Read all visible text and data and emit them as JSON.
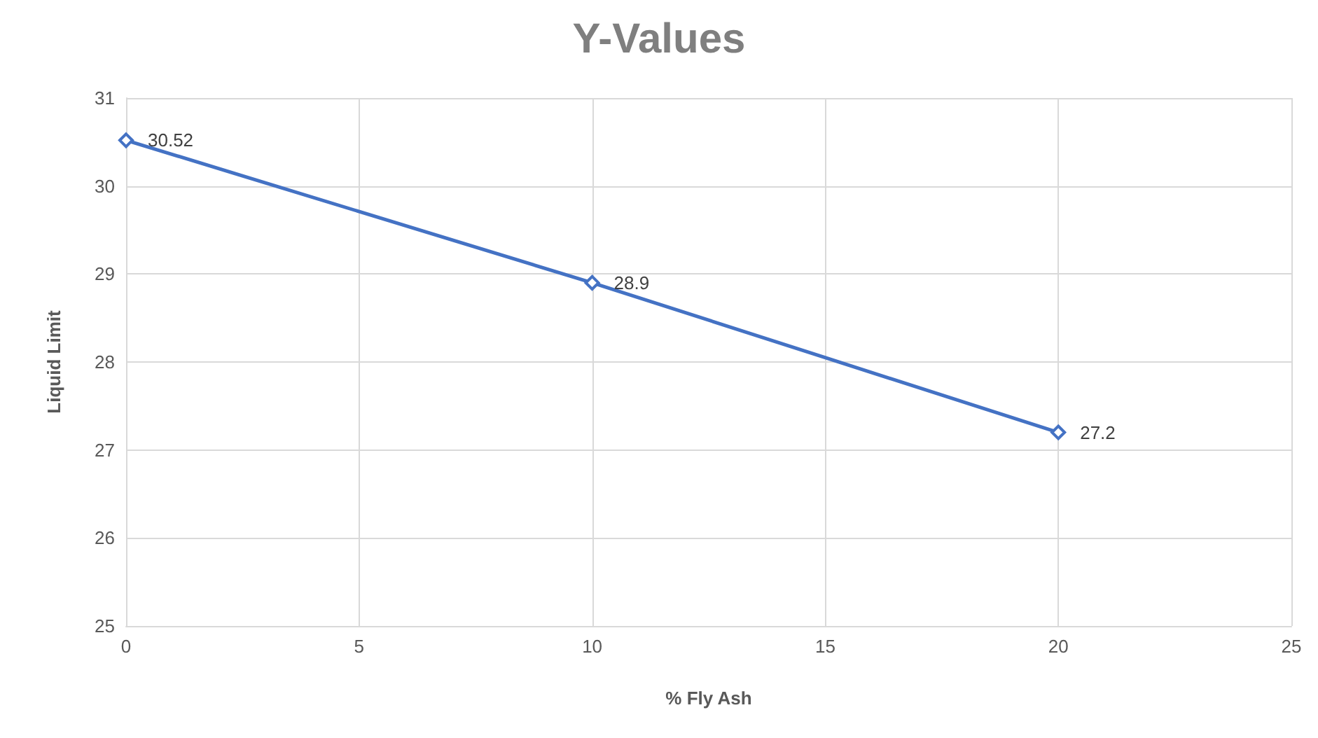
{
  "chart_data": {
    "type": "line",
    "title": "Y-Values",
    "xlabel": "% Fly Ash",
    "ylabel": "Liquid Limit",
    "x": [
      0,
      10,
      20
    ],
    "series": [
      {
        "color": "#4472c4",
        "values": [
          30.52,
          28.9,
          27.2
        ]
      }
    ],
    "xlim": [
      0,
      25
    ],
    "xticks": [
      0,
      5,
      10,
      15,
      20,
      25
    ],
    "ylim": [
      25,
      31
    ],
    "yticks": [
      25,
      26,
      27,
      28,
      29,
      30,
      31
    ],
    "grid": true,
    "marker": "diamond",
    "line_style": "solid",
    "data_labels": true
  }
}
